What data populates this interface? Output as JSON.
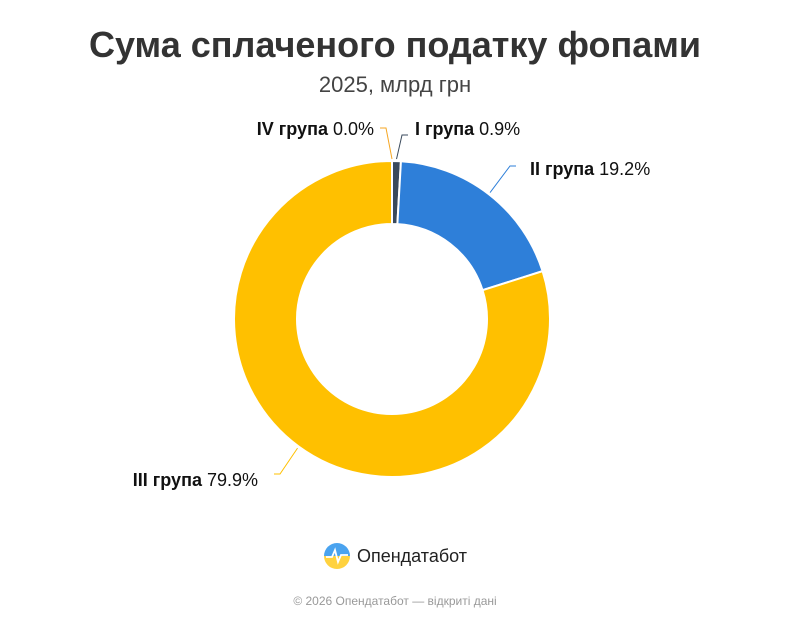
{
  "chart_data": {
    "type": "pie",
    "title": "Сума сплаченого податку фопами",
    "subtitle": "2025, млрд грн",
    "slices": [
      {
        "label": "I група",
        "value": 0.9,
        "value_text": "0.9%",
        "color": "#3a4a5c"
      },
      {
        "label": "II група",
        "value": 19.2,
        "value_text": "19.2%",
        "color": "#2e7fd9"
      },
      {
        "label": "III група",
        "value": 79.9,
        "value_text": "79.9%",
        "color": "#ffc000"
      },
      {
        "label": "IV група",
        "value": 0.0,
        "value_text": "0.0%",
        "color": "#f5a623"
      }
    ],
    "donut": true,
    "legend": "none"
  },
  "brand": {
    "name": "Опендатабот",
    "icon": "opendatabot-logo-icon"
  },
  "footer": "© 2026 Опендатабот — відкриті дані"
}
